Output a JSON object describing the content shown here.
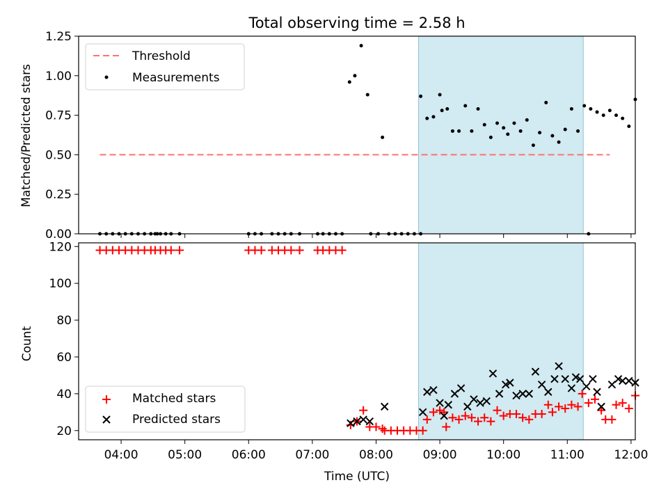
{
  "figure": {
    "title": "Total observing time = 2.58 h"
  },
  "chart_data": [
    {
      "type": "scatter",
      "ylabel": "Matched/Predicted stars",
      "xlabel": "",
      "x_unit": "hours UTC",
      "xlim": [
        "03:20",
        "12:04"
      ],
      "ylim": [
        0,
        1.25
      ],
      "yticks": [
        0.0,
        0.25,
        0.5,
        0.75,
        1.0,
        1.25
      ],
      "ytick_labels": [
        "0.00",
        "0.25",
        "0.50",
        "0.75",
        "1.00",
        "1.25"
      ],
      "grid": false,
      "legend_placement": "upper left",
      "shaded_interval": {
        "from": "08:40",
        "to": "11:15",
        "color": "#add8e6"
      },
      "threshold": {
        "name": "Threshold",
        "value": 0.5,
        "from": "03:40",
        "to": "11:40",
        "color": "#ff7070"
      },
      "series": [
        {
          "name": "Measurements",
          "color": "#000000",
          "points": [
            [
              "03:40",
              0
            ],
            [
              "03:46",
              0
            ],
            [
              "03:52",
              0
            ],
            [
              "03:58",
              0
            ],
            [
              "04:04",
              0
            ],
            [
              "04:10",
              0
            ],
            [
              "04:16",
              0
            ],
            [
              "04:22",
              0
            ],
            [
              "04:28",
              0
            ],
            [
              "04:34",
              0
            ],
            [
              "04:32",
              0
            ],
            [
              "04:37",
              0
            ],
            [
              "04:42",
              0
            ],
            [
              "04:47",
              0
            ],
            [
              "04:55",
              0
            ],
            [
              "06:00",
              0
            ],
            [
              "06:06",
              0
            ],
            [
              "06:12",
              0
            ],
            [
              "06:22",
              0
            ],
            [
              "06:28",
              0
            ],
            [
              "06:34",
              0
            ],
            [
              "06:40",
              0
            ],
            [
              "06:48",
              0
            ],
            [
              "07:05",
              0
            ],
            [
              "07:10",
              0
            ],
            [
              "07:16",
              0
            ],
            [
              "07:22",
              0
            ],
            [
              "07:28",
              0
            ],
            [
              "07:35",
              0.96
            ],
            [
              "07:40",
              1.0
            ],
            [
              "07:46",
              1.19
            ],
            [
              "07:52",
              0.88
            ],
            [
              "07:55",
              0
            ],
            [
              "08:02",
              0
            ],
            [
              "08:06",
              0.61
            ],
            [
              "08:12",
              0
            ],
            [
              "08:18",
              0
            ],
            [
              "08:24",
              0
            ],
            [
              "08:30",
              0
            ],
            [
              "08:36",
              0
            ],
            [
              "08:42",
              0
            ],
            [
              "08:42",
              0.87
            ],
            [
              "08:48",
              0.73
            ],
            [
              "08:54",
              0.74
            ],
            [
              "09:00",
              0.88
            ],
            [
              "09:02",
              0.78
            ],
            [
              "09:07",
              0.79
            ],
            [
              "09:12",
              0.65
            ],
            [
              "09:18",
              0.65
            ],
            [
              "09:24",
              0.81
            ],
            [
              "09:30",
              0.65
            ],
            [
              "09:36",
              0.79
            ],
            [
              "09:42",
              0.69
            ],
            [
              "09:48",
              0.61
            ],
            [
              "09:54",
              0.7
            ],
            [
              "10:00",
              0.67
            ],
            [
              "10:04",
              0.63
            ],
            [
              "10:10",
              0.7
            ],
            [
              "10:16",
              0.65
            ],
            [
              "10:22",
              0.72
            ],
            [
              "10:28",
              0.56
            ],
            [
              "10:34",
              0.64
            ],
            [
              "10:40",
              0.83
            ],
            [
              "10:46",
              0.62
            ],
            [
              "10:52",
              0.58
            ],
            [
              "10:58",
              0.66
            ],
            [
              "11:04",
              0.79
            ],
            [
              "11:10",
              0.65
            ],
            [
              "11:16",
              0.81
            ],
            [
              "11:22",
              0.79
            ],
            [
              "11:28",
              0.77
            ],
            [
              "11:34",
              0.75
            ],
            [
              "11:40",
              0.78
            ],
            [
              "11:20",
              0
            ],
            [
              "11:46",
              0.75
            ],
            [
              "11:52",
              0.73
            ],
            [
              "11:58",
              0.68
            ],
            [
              "12:04",
              0.85
            ]
          ]
        }
      ]
    },
    {
      "type": "scatter",
      "ylabel": "Count",
      "xlabel": "Time (UTC)",
      "x_unit": "hours UTC",
      "xlim": [
        "03:20",
        "12:04"
      ],
      "ylim": [
        15,
        122
      ],
      "yticks": [
        20,
        40,
        60,
        80,
        100,
        120
      ],
      "xticks": [
        "04:00",
        "05:00",
        "06:00",
        "07:00",
        "08:00",
        "09:00",
        "10:00",
        "11:00",
        "12:00"
      ],
      "grid": false,
      "legend_placement": "lower left",
      "shaded_interval": {
        "from": "08:40",
        "to": "11:15",
        "color": "#add8e6"
      },
      "series": [
        {
          "name": "Matched stars",
          "marker": "+",
          "color": "#ff0000",
          "points": [
            [
              "03:40",
              118
            ],
            [
              "03:46",
              118
            ],
            [
              "03:52",
              118
            ],
            [
              "03:58",
              118
            ],
            [
              "04:04",
              118
            ],
            [
              "04:10",
              118
            ],
            [
              "04:16",
              118
            ],
            [
              "04:22",
              118
            ],
            [
              "04:28",
              118
            ],
            [
              "04:32",
              118
            ],
            [
              "04:37",
              118
            ],
            [
              "04:42",
              118
            ],
            [
              "04:47",
              118
            ],
            [
              "04:55",
              118
            ],
            [
              "06:00",
              118
            ],
            [
              "06:06",
              118
            ],
            [
              "06:12",
              118
            ],
            [
              "06:22",
              118
            ],
            [
              "06:28",
              118
            ],
            [
              "06:34",
              118
            ],
            [
              "06:40",
              118
            ],
            [
              "06:48",
              118
            ],
            [
              "07:05",
              118
            ],
            [
              "07:10",
              118
            ],
            [
              "07:16",
              118
            ],
            [
              "07:22",
              118
            ],
            [
              "07:28",
              118
            ],
            [
              "07:36",
              23
            ],
            [
              "07:42",
              25
            ],
            [
              "07:48",
              31
            ],
            [
              "07:54",
              22
            ],
            [
              "08:00",
              22
            ],
            [
              "08:06",
              21
            ],
            [
              "08:08",
              20
            ],
            [
              "08:14",
              20
            ],
            [
              "08:20",
              20
            ],
            [
              "08:26",
              20
            ],
            [
              "08:32",
              20
            ],
            [
              "08:38",
              20
            ],
            [
              "08:44",
              20
            ],
            [
              "08:48",
              26
            ],
            [
              "08:54",
              30
            ],
            [
              "09:00",
              31
            ],
            [
              "09:04",
              30
            ],
            [
              "09:06",
              22
            ],
            [
              "09:12",
              27
            ],
            [
              "09:18",
              26
            ],
            [
              "09:24",
              28
            ],
            [
              "09:30",
              27
            ],
            [
              "09:36",
              25
            ],
            [
              "09:42",
              27
            ],
            [
              "09:48",
              25
            ],
            [
              "09:54",
              31
            ],
            [
              "10:00",
              28
            ],
            [
              "10:06",
              29
            ],
            [
              "10:12",
              29
            ],
            [
              "10:18",
              27
            ],
            [
              "10:24",
              26
            ],
            [
              "10:30",
              29
            ],
            [
              "10:36",
              29
            ],
            [
              "10:42",
              34
            ],
            [
              "10:46",
              30
            ],
            [
              "10:52",
              33
            ],
            [
              "10:58",
              32
            ],
            [
              "11:04",
              34
            ],
            [
              "11:10",
              33
            ],
            [
              "11:14",
              40
            ],
            [
              "11:20",
              35
            ],
            [
              "11:26",
              37
            ],
            [
              "11:32",
              31
            ],
            [
              "11:36",
              26
            ],
            [
              "11:42",
              26
            ],
            [
              "11:46",
              34
            ],
            [
              "11:52",
              35
            ],
            [
              "11:58",
              32
            ],
            [
              "12:04",
              39
            ]
          ]
        },
        {
          "name": "Predicted stars",
          "marker": "x",
          "color": "#000000",
          "points": [
            [
              "07:36",
              24
            ],
            [
              "07:42",
              25
            ],
            [
              "07:48",
              26
            ],
            [
              "07:54",
              25
            ],
            [
              "08:08",
              33
            ],
            [
              "08:44",
              30
            ],
            [
              "08:48",
              41
            ],
            [
              "08:54",
              42
            ],
            [
              "09:00",
              35
            ],
            [
              "09:04",
              28
            ],
            [
              "09:08",
              34
            ],
            [
              "09:14",
              40
            ],
            [
              "09:20",
              43
            ],
            [
              "09:26",
              33
            ],
            [
              "09:32",
              37
            ],
            [
              "09:38",
              35
            ],
            [
              "09:44",
              36
            ],
            [
              "09:50",
              51
            ],
            [
              "09:56",
              40
            ],
            [
              "10:02",
              45
            ],
            [
              "10:06",
              46
            ],
            [
              "10:12",
              39
            ],
            [
              "10:18",
              40
            ],
            [
              "10:24",
              40
            ],
            [
              "10:30",
              52
            ],
            [
              "10:36",
              45
            ],
            [
              "10:42",
              41
            ],
            [
              "10:48",
              48
            ],
            [
              "10:52",
              55
            ],
            [
              "10:58",
              48
            ],
            [
              "11:04",
              43
            ],
            [
              "11:08",
              49
            ],
            [
              "11:12",
              48
            ],
            [
              "11:18",
              44
            ],
            [
              "11:24",
              48
            ],
            [
              "11:28",
              41
            ],
            [
              "11:32",
              33
            ],
            [
              "11:42",
              45
            ],
            [
              "11:48",
              48
            ],
            [
              "11:52",
              47
            ],
            [
              "11:58",
              47
            ],
            [
              "12:04",
              46
            ]
          ]
        }
      ]
    }
  ],
  "legend_top": [
    {
      "label": "Threshold"
    },
    {
      "label": "Measurements"
    }
  ],
  "legend_bottom": [
    {
      "label": "Matched stars"
    },
    {
      "label": "Predicted stars"
    }
  ]
}
